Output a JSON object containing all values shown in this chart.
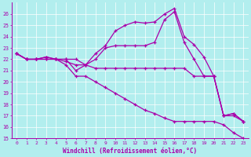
{
  "xlabel": "Windchill (Refroidissement éolien,°C)",
  "xlim": [
    -0.5,
    23.5
  ],
  "ylim": [
    15,
    27
  ],
  "yticks": [
    15,
    16,
    17,
    18,
    19,
    20,
    21,
    22,
    23,
    24,
    25,
    26
  ],
  "xticks": [
    0,
    1,
    2,
    3,
    4,
    5,
    6,
    7,
    8,
    9,
    10,
    11,
    12,
    13,
    14,
    15,
    16,
    17,
    18,
    19,
    20,
    21,
    22,
    23
  ],
  "background_color": "#b2eeee",
  "line_color": "#aa00aa",
  "grid_color": "#ffffff",
  "lines": [
    {
      "x": [
        0,
        1,
        2,
        3,
        4,
        5,
        6,
        7,
        8,
        9,
        10,
        11,
        12,
        13,
        14,
        15,
        16,
        17,
        18,
        19,
        20,
        21,
        22,
        23
      ],
      "y": [
        22.5,
        22.0,
        22.0,
        22.2,
        22.0,
        22.0,
        22.0,
        21.5,
        22.5,
        23.2,
        24.5,
        25.0,
        25.3,
        25.2,
        25.3,
        26.0,
        26.5,
        24.0,
        23.3,
        22.2,
        20.5,
        17.0,
        17.2,
        16.5
      ]
    },
    {
      "x": [
        0,
        1,
        2,
        3,
        4,
        5,
        6,
        7,
        8,
        9,
        10,
        11,
        12,
        13,
        14,
        15,
        16,
        17,
        18,
        19,
        20,
        21,
        22,
        23
      ],
      "y": [
        22.5,
        22.0,
        22.0,
        22.2,
        22.0,
        21.8,
        21.5,
        21.5,
        22.0,
        23.0,
        23.2,
        23.2,
        23.2,
        23.2,
        23.5,
        25.5,
        26.2,
        23.5,
        22.0,
        20.5,
        20.5,
        17.0,
        17.2,
        16.5
      ]
    },
    {
      "x": [
        0,
        1,
        2,
        3,
        4,
        5,
        6,
        7,
        8,
        9,
        10,
        11,
        12,
        13,
        14,
        15,
        16,
        17,
        18,
        19,
        20,
        21,
        22,
        23
      ],
      "y": [
        22.5,
        22.0,
        22.0,
        22.0,
        22.0,
        22.0,
        21.0,
        21.5,
        21.2,
        21.2,
        21.2,
        21.2,
        21.2,
        21.2,
        21.2,
        21.2,
        21.2,
        21.2,
        20.5,
        20.5,
        20.5,
        17.0,
        17.0,
        16.5
      ]
    },
    {
      "x": [
        0,
        1,
        2,
        3,
        4,
        5,
        6,
        7,
        8,
        9,
        10,
        11,
        12,
        13,
        14,
        15,
        16,
        17,
        18,
        19,
        20,
        21,
        22,
        23
      ],
      "y": [
        22.5,
        22.0,
        22.0,
        22.0,
        22.0,
        21.5,
        20.5,
        20.5,
        20.0,
        19.5,
        19.0,
        18.5,
        18.0,
        17.5,
        17.2,
        16.8,
        16.5,
        16.5,
        16.5,
        16.5,
        16.5,
        16.2,
        15.5,
        15.0
      ]
    }
  ]
}
